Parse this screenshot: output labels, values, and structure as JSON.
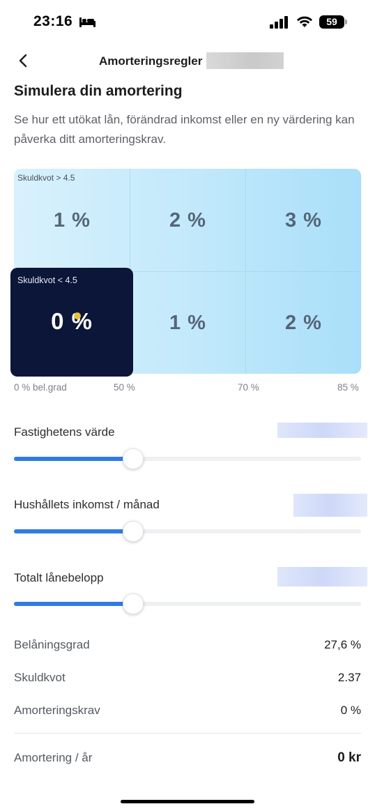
{
  "status_bar": {
    "time": "23:16",
    "battery": "59"
  },
  "nav": {
    "title": "Amorteringsregler"
  },
  "header": {
    "title": "Simulera din amortering",
    "description": "Se hur ett utökat lån, förändrad inkomst eller en ny värdering kan påverka ditt amorteringskrav."
  },
  "grid": {
    "top_row_label": "Skuldkvot > 4.5",
    "bottom_row_label": "Skuldkvot < 4.5",
    "top_row": [
      "1 %",
      "2 %",
      "3 %"
    ],
    "bottom_row": [
      "0 %",
      "1 %",
      "2 %"
    ],
    "active": {
      "row": "bottom",
      "column": 1
    },
    "axis_labels": [
      "0 % bel.grad",
      "50 %",
      "70 %",
      "85 %"
    ]
  },
  "sliders": [
    {
      "label": "Fastighetens värde",
      "level_percent": 34
    },
    {
      "label": "Hushållets inkomst / månad",
      "level_percent": 34
    },
    {
      "label": "Totalt lånebelopp",
      "level_percent": 34
    }
  ],
  "summary": [
    {
      "label": "Belåningsgrad",
      "value": "27,6 %"
    },
    {
      "label": "Skuldkvot",
      "value": "2.37"
    },
    {
      "label": "Amorteringskrav",
      "value": "0 %"
    }
  ],
  "total": {
    "label": "Amortering / år",
    "value": "0 kr"
  },
  "colors": {
    "accent": "#2f7be6",
    "active_cell": "#0b1638",
    "grid_light": "#d8f1fd",
    "grid_dark": "#a9dff9"
  }
}
